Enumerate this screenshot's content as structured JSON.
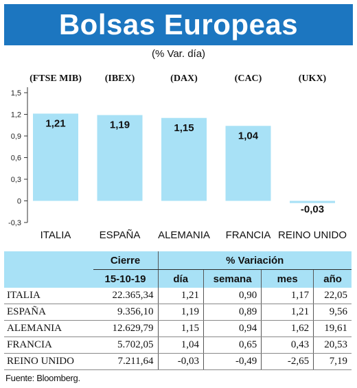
{
  "header": {
    "title": "Bolsas Europeas",
    "subtitle": "(% Var. día)"
  },
  "chart_data": {
    "type": "bar",
    "categories": [
      "ITALIA",
      "ESPAÑA",
      "ALEMANIA",
      "FRANCIA",
      "REINO UNIDO"
    ],
    "indices": [
      "(FTSE MIB)",
      "(IBEX)",
      "(DAX)",
      "(CAC)",
      "(UKX)"
    ],
    "values": [
      1.21,
      1.19,
      1.15,
      1.04,
      -0.03
    ],
    "value_labels": [
      "1,21",
      "1,19",
      "1,15",
      "1,04",
      "-0,03"
    ],
    "yticks": [
      1.5,
      1.2,
      0.9,
      0.6,
      0.3,
      0,
      -0.3
    ],
    "ytick_labels": [
      "1,5",
      "1,2",
      "0,9",
      "0,6",
      "0,3",
      "0",
      "-0,3"
    ],
    "ylim": [
      -0.3,
      1.5
    ],
    "bar_color": "#a8e1f6",
    "title": "",
    "xlabel": "",
    "ylabel": ""
  },
  "table": {
    "col_group_cierre": "Cierre",
    "col_group_variacion": "% Variación",
    "col_date": "15-10-19",
    "col_dia": "día",
    "col_semana": "semana",
    "col_mes": "mes",
    "col_anio": "año",
    "rows": [
      {
        "name": "ITALIA",
        "cierre": "22.365,34",
        "dia": "1,21",
        "semana": "0,90",
        "mes": "1,17",
        "anio": "22,05"
      },
      {
        "name": "ESPAÑA",
        "cierre": "9.356,10",
        "dia": "1,19",
        "semana": "0,89",
        "mes": "1,21",
        "anio": "9,56"
      },
      {
        "name": "ALEMANIA",
        "cierre": "12.629,79",
        "dia": "1,15",
        "semana": "0,94",
        "mes": "1,62",
        "anio": "19,61"
      },
      {
        "name": "FRANCIA",
        "cierre": "5.702,05",
        "dia": "1,04",
        "semana": "0,65",
        "mes": "0,43",
        "anio": "20,53"
      },
      {
        "name": "REINO UNIDO",
        "cierre": "7.211,64",
        "dia": "-0,03",
        "semana": "-0,49",
        "mes": "-2,65",
        "anio": "7,19"
      }
    ]
  },
  "footer": {
    "source": "Fuente: Bloomberg."
  },
  "colors": {
    "banner": "#1c76c0",
    "bars": "#a8e1f6",
    "table_header": "#a8e1f6"
  }
}
